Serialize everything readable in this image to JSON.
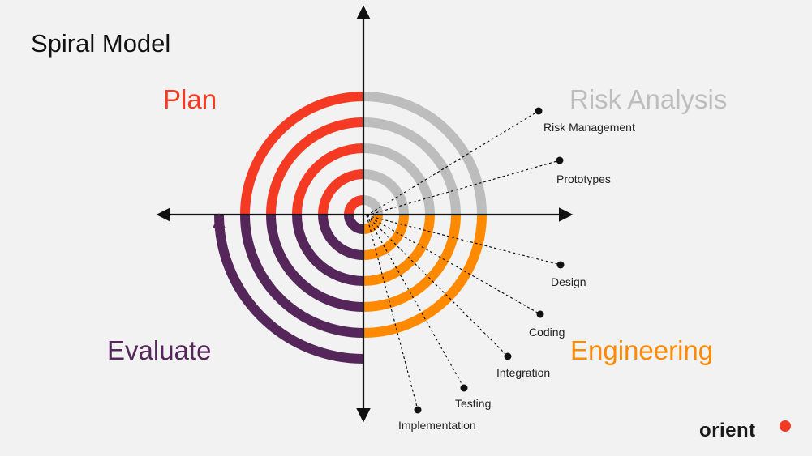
{
  "title": "Spiral Model",
  "quadrants": {
    "plan": "Plan",
    "risk_analysis": "Risk Analysis",
    "evaluate": "Evaluate",
    "engineering": "Engineering"
  },
  "risk_annotations": [
    "Risk Management",
    "Prototypes"
  ],
  "engineering_annotations": [
    "Design",
    "Coding",
    "Integration",
    "Testing",
    "Implementation"
  ],
  "logo": "orient",
  "colors": {
    "plan": "#f53a24",
    "risk_analysis": "#bdbdbd",
    "evaluate": "#55265a",
    "engineering": "#ff8a00",
    "logo_dot": "#f53a24"
  }
}
